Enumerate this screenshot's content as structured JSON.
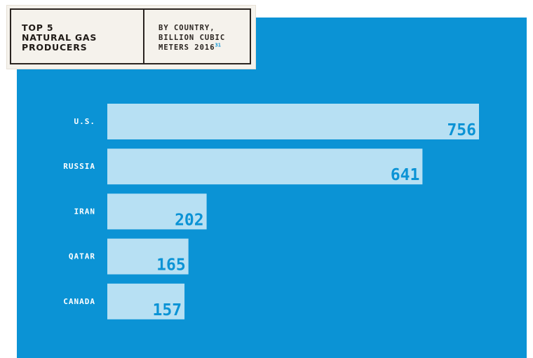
{
  "header": {
    "title": "TOP 5\nNATURAL GAS\nPRODUCERS",
    "subtitle": "BY COUNTRY,\nBILLION CUBIC\nMETERS 2016",
    "footnote": "31"
  },
  "colors": {
    "panel": "#0b93d5",
    "bar": "#b7e0f3",
    "value_text": "#0b93d5",
    "label_text": "#ffffff",
    "card_bg": "#f5f2ec",
    "card_border": "#2a2420"
  },
  "chart_data": {
    "type": "bar",
    "orientation": "horizontal",
    "categories": [
      "U.S.",
      "RUSSIA",
      "IRAN",
      "QATAR",
      "CANADA"
    ],
    "values": [
      756,
      641,
      202,
      165,
      157
    ],
    "xlim": [
      0,
      756
    ],
    "grid": false,
    "legend": "none"
  }
}
